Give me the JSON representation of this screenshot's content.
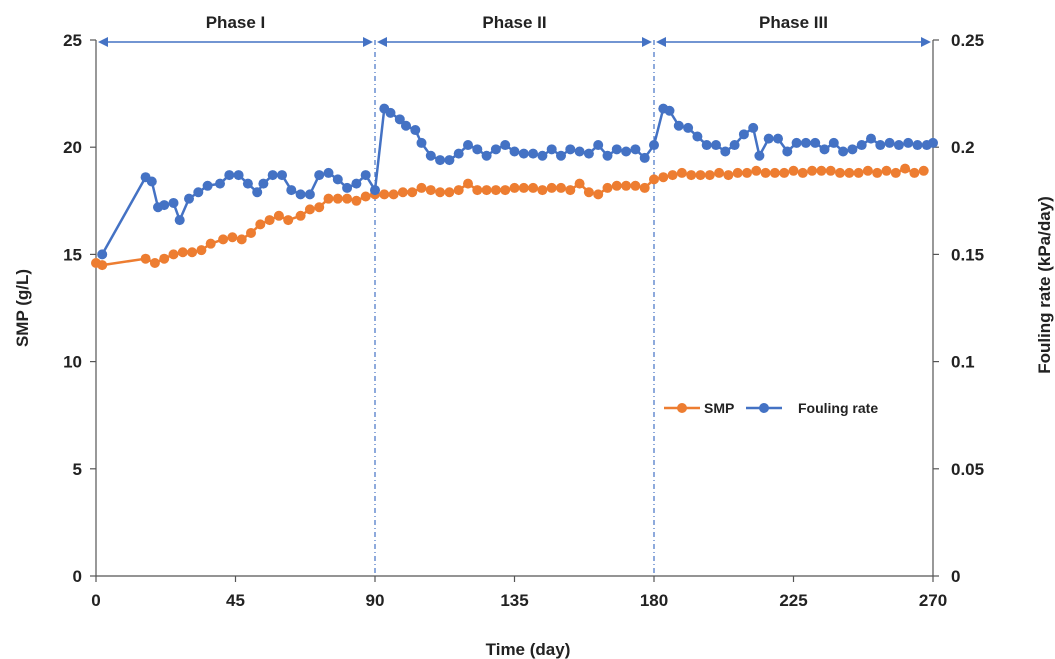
{
  "chart_data": {
    "type": "line",
    "xlabel": "Time (day)",
    "ylabel": "SMP (g/L)",
    "y2label": "Fouling rate  (kPa/day)",
    "xlim": [
      0,
      270
    ],
    "ylim": [
      0,
      25
    ],
    "y2lim": [
      0,
      0.25
    ],
    "x_ticks": [
      "0",
      "45",
      "90",
      "135",
      "180",
      "225",
      "270"
    ],
    "x_tick_values": [
      0,
      45,
      90,
      135,
      180,
      225,
      270
    ],
    "y_ticks": [
      "0",
      "5",
      "10",
      "15",
      "20",
      "25"
    ],
    "y_tick_values": [
      0,
      5,
      10,
      15,
      20,
      25
    ],
    "y2_ticks": [
      "0",
      "0.05",
      "0.1",
      "0.15",
      "0.2",
      "0.25"
    ],
    "y2_tick_values": [
      0,
      0.05,
      0.1,
      0.15,
      0.2,
      0.25
    ],
    "grid": false,
    "legend_position": "bottom-right",
    "phases": [
      {
        "label": "Phase I",
        "start": 0,
        "end": 90
      },
      {
        "label": "Phase II",
        "start": 90,
        "end": 180
      },
      {
        "label": "Phase III",
        "start": 180,
        "end": 270
      }
    ],
    "phase_boundaries": [
      90,
      180
    ],
    "series": [
      {
        "name": "SMP",
        "axis": "left",
        "color": "#ED7D31",
        "x": [
          0,
          2,
          16,
          19,
          22,
          25,
          28,
          31,
          34,
          37,
          41,
          44,
          47,
          50,
          53,
          56,
          59,
          62,
          66,
          69,
          72,
          75,
          78,
          81,
          84,
          87,
          90,
          93,
          96,
          99,
          102,
          105,
          108,
          111,
          114,
          117,
          120,
          123,
          126,
          129,
          132,
          135,
          138,
          141,
          144,
          147,
          150,
          153,
          156,
          159,
          162,
          165,
          168,
          171,
          174,
          177,
          180,
          183,
          186,
          189,
          192,
          195,
          198,
          201,
          204,
          207,
          210,
          213,
          216,
          219,
          222,
          225,
          228,
          231,
          234,
          237,
          240,
          243,
          246,
          249,
          252,
          255,
          258,
          261,
          264,
          267
        ],
        "values": [
          14.6,
          14.5,
          14.8,
          14.6,
          14.8,
          15.0,
          15.1,
          15.1,
          15.2,
          15.5,
          15.7,
          15.8,
          15.7,
          16.0,
          16.4,
          16.6,
          16.8,
          16.6,
          16.8,
          17.1,
          17.2,
          17.6,
          17.6,
          17.6,
          17.5,
          17.7,
          17.8,
          17.8,
          17.8,
          17.9,
          17.9,
          18.1,
          18.0,
          17.9,
          17.9,
          18.0,
          18.3,
          18.0,
          18.0,
          18.0,
          18.0,
          18.1,
          18.1,
          18.1,
          18.0,
          18.1,
          18.1,
          18.0,
          18.3,
          17.9,
          17.8,
          18.1,
          18.2,
          18.2,
          18.2,
          18.1,
          18.5,
          18.6,
          18.7,
          18.8,
          18.7,
          18.7,
          18.7,
          18.8,
          18.7,
          18.8,
          18.8,
          18.9,
          18.8,
          18.8,
          18.8,
          18.9,
          18.8,
          18.9,
          18.9,
          18.9,
          18.8,
          18.8,
          18.8,
          18.9,
          18.8,
          18.9,
          18.8,
          19.0,
          18.8,
          18.9
        ]
      },
      {
        "name": "Fouling rate",
        "axis": "right",
        "color": "#4472C4",
        "x": [
          2,
          16,
          18,
          20,
          22,
          25,
          27,
          30,
          33,
          36,
          40,
          43,
          46,
          49,
          52,
          54,
          57,
          60,
          63,
          66,
          69,
          72,
          75,
          78,
          81,
          84,
          87,
          90,
          93,
          95,
          98,
          100,
          103,
          105,
          108,
          111,
          114,
          117,
          120,
          123,
          126,
          129,
          132,
          135,
          138,
          141,
          144,
          147,
          150,
          153,
          156,
          159,
          162,
          165,
          168,
          171,
          174,
          177,
          180,
          183,
          185,
          188,
          191,
          194,
          197,
          200,
          203,
          206,
          209,
          212,
          214,
          217,
          220,
          223,
          226,
          229,
          232,
          235,
          238,
          241,
          244,
          247,
          250,
          253,
          256,
          259,
          262,
          265,
          268,
          270
        ],
        "values": [
          0.15,
          0.186,
          0.184,
          0.172,
          0.173,
          0.174,
          0.166,
          0.176,
          0.179,
          0.182,
          0.183,
          0.187,
          0.187,
          0.183,
          0.179,
          0.183,
          0.187,
          0.187,
          0.18,
          0.178,
          0.178,
          0.187,
          0.188,
          0.185,
          0.181,
          0.183,
          0.187,
          0.18,
          0.218,
          0.216,
          0.213,
          0.21,
          0.208,
          0.202,
          0.196,
          0.194,
          0.194,
          0.197,
          0.201,
          0.199,
          0.196,
          0.199,
          0.201,
          0.198,
          0.197,
          0.197,
          0.196,
          0.199,
          0.196,
          0.199,
          0.198,
          0.197,
          0.201,
          0.196,
          0.199,
          0.198,
          0.199,
          0.195,
          0.201,
          0.218,
          0.217,
          0.21,
          0.209,
          0.205,
          0.201,
          0.201,
          0.198,
          0.201,
          0.206,
          0.209,
          0.196,
          0.204,
          0.204,
          0.198,
          0.202,
          0.202,
          0.202,
          0.199,
          0.202,
          0.198,
          0.199,
          0.201,
          0.204,
          0.201,
          0.202,
          0.201,
          0.202,
          0.201,
          0.201,
          0.202
        ]
      }
    ]
  }
}
